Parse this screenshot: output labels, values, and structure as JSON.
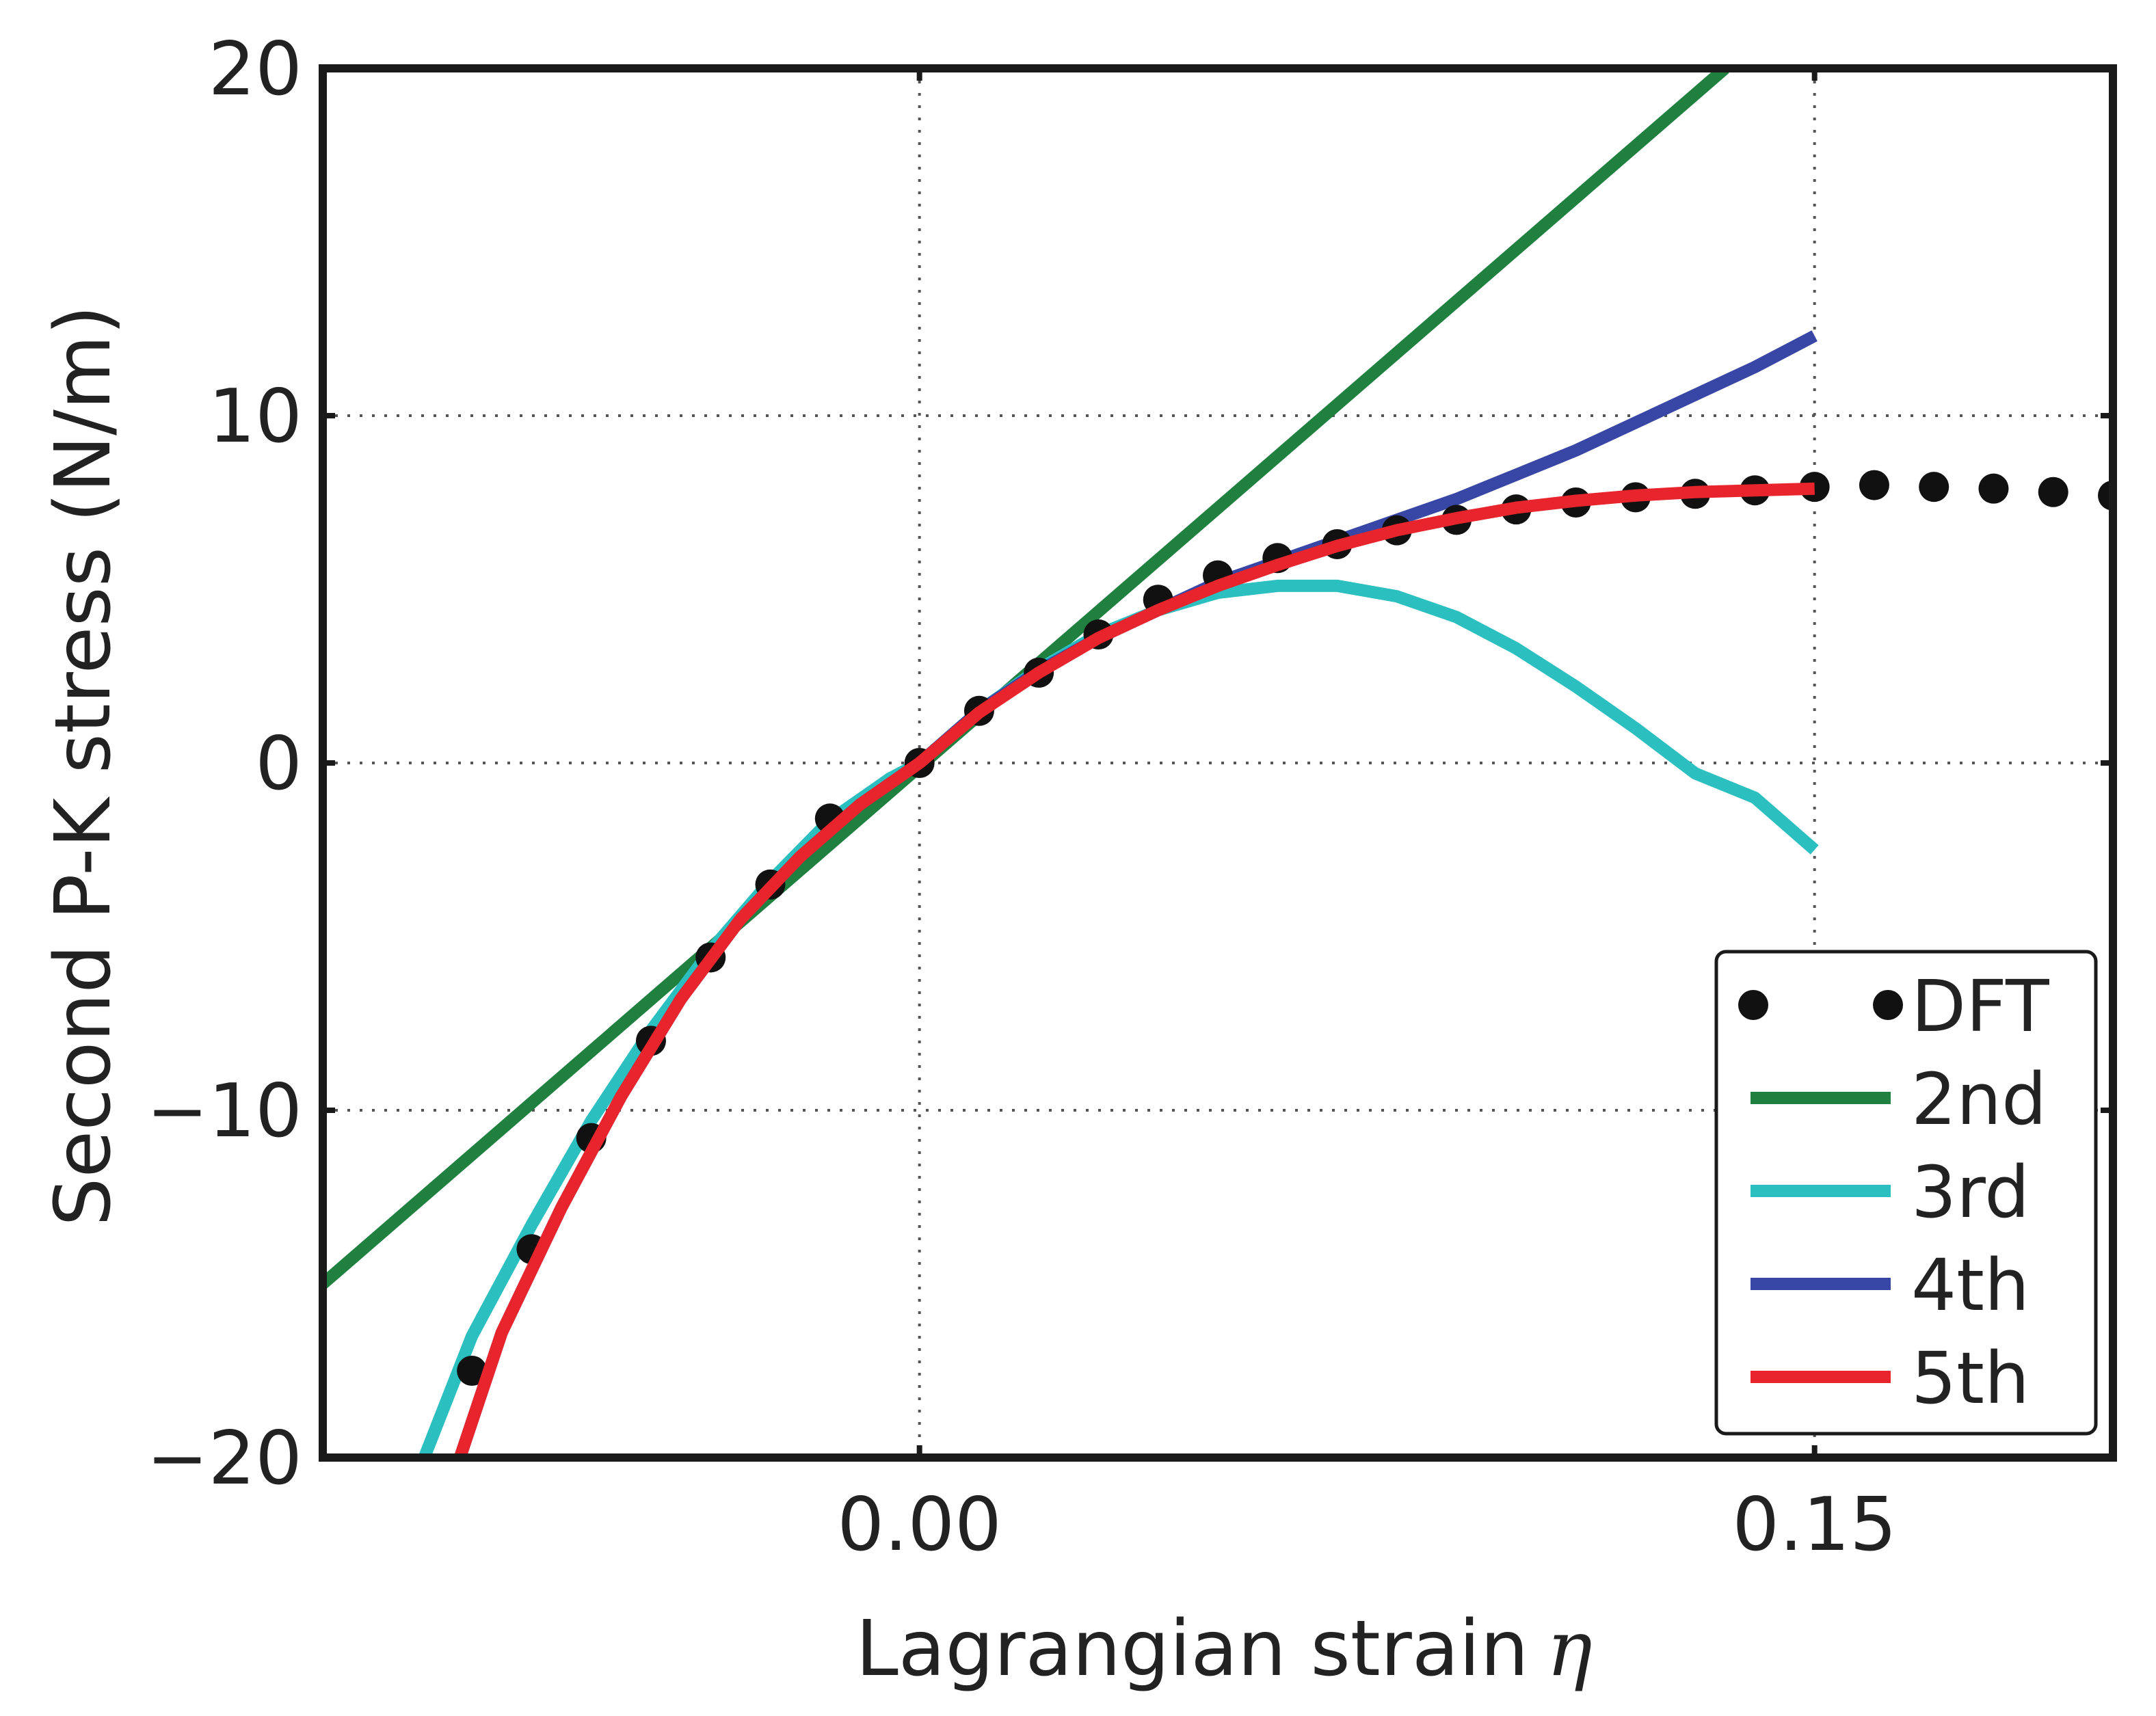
{
  "chart_data": {
    "type": "line",
    "title": "",
    "xlabel": "Lagrangian strain",
    "xlabel_symbol": "η",
    "ylabel": "Second P-K stress (N/m)",
    "xlim": [
      -0.1,
      0.2
    ],
    "ylim": [
      -20,
      20
    ],
    "x_ticks": [
      0.0,
      0.15
    ],
    "x_tick_labels": [
      "0.00",
      "0.15"
    ],
    "y_ticks": [
      -20,
      -10,
      0,
      10,
      20
    ],
    "y_tick_labels": [
      "−20",
      "−10",
      "0",
      "10",
      "20"
    ],
    "grid": true,
    "legend_position": "lower right",
    "colors": {
      "DFT": "#111111",
      "2nd": "#1f8040",
      "3rd": "#2bbfc0",
      "4th": "#3846a5",
      "5th": "#e8242c"
    },
    "series": [
      {
        "name": "DFT",
        "style": "markers",
        "x": [
          -0.075,
          -0.065,
          -0.055,
          -0.045,
          -0.035,
          -0.025,
          -0.015,
          0.0,
          0.01,
          0.02,
          0.03,
          0.04,
          0.05,
          0.06,
          0.07,
          0.08,
          0.09,
          0.1,
          0.11,
          0.12,
          0.13,
          0.14,
          0.15,
          0.16,
          0.17,
          0.18,
          0.19,
          0.2
        ],
        "y": [
          -17.5,
          -14.0,
          -10.8,
          -8.0,
          -5.6,
          -3.5,
          -1.6,
          0.0,
          1.5,
          2.6,
          3.7,
          4.7,
          5.4,
          5.9,
          6.3,
          6.7,
          7.0,
          7.3,
          7.5,
          7.65,
          7.75,
          7.85,
          7.95,
          8.0,
          7.95,
          7.9,
          7.8,
          7.7
        ]
      },
      {
        "name": "2nd",
        "style": "line",
        "x": [
          -0.1,
          0.135
        ],
        "y": [
          -15.0,
          20.0
        ]
      },
      {
        "name": "3rd",
        "style": "line",
        "x": [
          -0.083,
          -0.075,
          -0.065,
          -0.055,
          -0.045,
          -0.035,
          -0.025,
          -0.015,
          -0.005,
          0.0,
          0.01,
          0.02,
          0.03,
          0.04,
          0.05,
          0.06,
          0.07,
          0.08,
          0.09,
          0.1,
          0.11,
          0.12,
          0.13,
          0.14,
          0.15
        ],
        "y": [
          -20.0,
          -16.5,
          -13.3,
          -10.3,
          -7.7,
          -5.4,
          -3.4,
          -1.65,
          -0.45,
          0.0,
          1.5,
          2.7,
          3.7,
          4.4,
          4.9,
          5.1,
          5.1,
          4.8,
          4.2,
          3.3,
          2.2,
          1.0,
          -0.3,
          -1.0,
          -2.5
        ]
      },
      {
        "name": "4th",
        "style": "line",
        "x": [
          -0.077,
          -0.07,
          -0.06,
          -0.05,
          -0.04,
          -0.03,
          -0.02,
          -0.01,
          0.0,
          0.01,
          0.02,
          0.03,
          0.04,
          0.05,
          0.06,
          0.07,
          0.08,
          0.09,
          0.1,
          0.11,
          0.12,
          0.13,
          0.14,
          0.15
        ],
        "y": [
          -20.0,
          -16.4,
          -12.8,
          -9.6,
          -6.8,
          -4.5,
          -2.7,
          -1.2,
          0.0,
          1.5,
          2.65,
          3.6,
          4.4,
          5.2,
          5.8,
          6.4,
          7.0,
          7.6,
          8.3,
          9.0,
          9.8,
          10.6,
          11.4,
          12.3
        ]
      },
      {
        "name": "5th",
        "style": "line",
        "x": [
          -0.077,
          -0.07,
          -0.06,
          -0.05,
          -0.04,
          -0.03,
          -0.02,
          -0.01,
          0.0,
          0.01,
          0.02,
          0.03,
          0.04,
          0.05,
          0.06,
          0.07,
          0.08,
          0.09,
          0.1,
          0.11,
          0.12,
          0.13,
          0.14,
          0.15
        ],
        "y": [
          -20.0,
          -16.4,
          -12.8,
          -9.6,
          -6.8,
          -4.5,
          -2.7,
          -1.2,
          0.0,
          1.45,
          2.6,
          3.6,
          4.4,
          5.1,
          5.7,
          6.25,
          6.7,
          7.05,
          7.35,
          7.55,
          7.7,
          7.8,
          7.85,
          7.9
        ]
      }
    ]
  }
}
